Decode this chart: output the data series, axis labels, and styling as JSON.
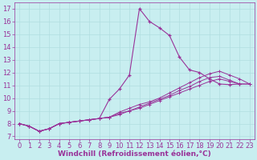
{
  "background_color": "#c8eef0",
  "grid_color": "#b0dde0",
  "line_color": "#993399",
  "marker": "+",
  "xlabel": "Windchill (Refroidissement éolien,°C)",
  "xlabel_fontsize": 6.5,
  "tick_fontsize": 6,
  "xlim": [
    -0.5,
    23.5
  ],
  "ylim": [
    6.8,
    17.5
  ],
  "yticks": [
    7,
    8,
    9,
    10,
    11,
    12,
    13,
    14,
    15,
    16,
    17
  ],
  "xticks": [
    0,
    1,
    2,
    3,
    4,
    5,
    6,
    7,
    8,
    9,
    10,
    11,
    12,
    13,
    14,
    15,
    16,
    17,
    18,
    19,
    20,
    21,
    22,
    23
  ],
  "series1_x": [
    0,
    1,
    2,
    3,
    4,
    5,
    6,
    7,
    8,
    9,
    10,
    11,
    12,
    13,
    14,
    15,
    16,
    17,
    18,
    19,
    20,
    21,
    22
  ],
  "series1_y": [
    8.0,
    7.8,
    7.4,
    7.6,
    8.0,
    8.1,
    8.2,
    8.3,
    8.4,
    9.9,
    10.7,
    11.8,
    17.0,
    16.0,
    15.5,
    14.9,
    13.2,
    12.2,
    12.0,
    11.5,
    11.1,
    11.05,
    11.1
  ],
  "series2_x": [
    0,
    1,
    2,
    3,
    4,
    5,
    6,
    7,
    8,
    9,
    10,
    11,
    12,
    13,
    14,
    15,
    16,
    17,
    18,
    19,
    20,
    21,
    22,
    23
  ],
  "series2_y": [
    8.0,
    7.8,
    7.4,
    7.6,
    8.0,
    8.1,
    8.2,
    8.3,
    8.4,
    8.5,
    8.7,
    9.0,
    9.2,
    9.5,
    9.8,
    10.1,
    10.4,
    10.7,
    11.0,
    11.3,
    11.5,
    11.3,
    11.1,
    11.1
  ],
  "series3_x": [
    0,
    1,
    2,
    3,
    4,
    5,
    6,
    7,
    8,
    9,
    10,
    11,
    12,
    13,
    14,
    15,
    16,
    17,
    18,
    19,
    20,
    21,
    22,
    23
  ],
  "series3_y": [
    8.0,
    7.8,
    7.4,
    7.6,
    8.0,
    8.1,
    8.2,
    8.3,
    8.4,
    8.5,
    8.8,
    9.0,
    9.3,
    9.6,
    9.9,
    10.2,
    10.6,
    10.9,
    11.3,
    11.6,
    11.7,
    11.4,
    11.1,
    11.1
  ],
  "series4_x": [
    0,
    1,
    2,
    3,
    4,
    5,
    6,
    7,
    8,
    9,
    10,
    11,
    12,
    13,
    14,
    15,
    16,
    17,
    18,
    19,
    20,
    21,
    22,
    23
  ],
  "series4_y": [
    8.0,
    7.8,
    7.4,
    7.6,
    8.0,
    8.1,
    8.2,
    8.3,
    8.4,
    8.5,
    8.9,
    9.2,
    9.5,
    9.7,
    10.0,
    10.4,
    10.8,
    11.2,
    11.6,
    11.9,
    12.1,
    11.8,
    11.5,
    11.1
  ]
}
